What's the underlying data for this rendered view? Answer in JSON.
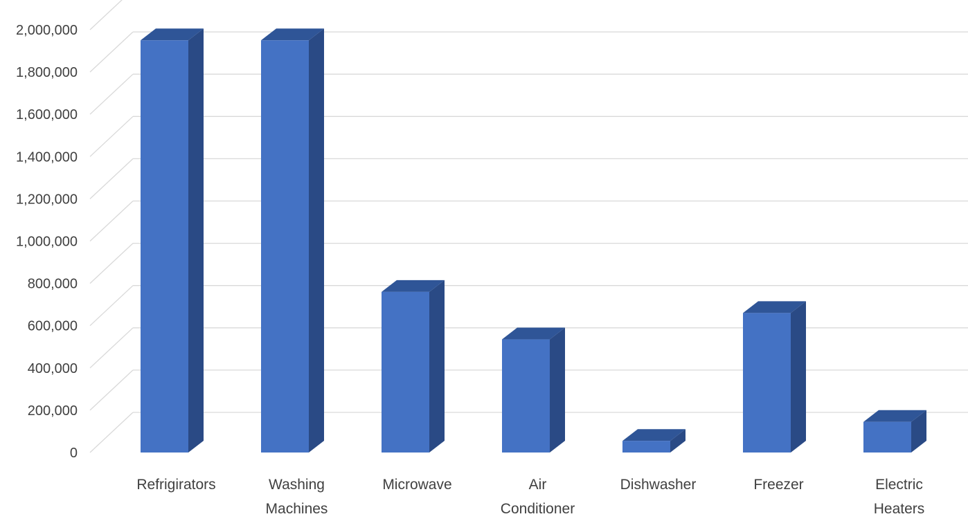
{
  "chart_data": {
    "type": "bar",
    "style": "3d-column",
    "categories": [
      [
        "Refrigirators"
      ],
      [
        "Washing",
        "Machines"
      ],
      [
        "Microwave"
      ],
      [
        "Air",
        "Conditioner"
      ],
      [
        "Dishwasher"
      ],
      [
        "Freezer"
      ],
      [
        "Electric",
        "Heaters"
      ]
    ],
    "values": [
      1950000,
      1950000,
      760000,
      535000,
      55000,
      660000,
      145000
    ],
    "y_ticks": [
      "0",
      "200,000",
      "400,000",
      "600,000",
      "800,000",
      "1,000,000",
      "1,200,000",
      "1,400,000",
      "1,600,000",
      "1,800,000",
      "2,000,000"
    ],
    "ylim": [
      0,
      2200000
    ],
    "title": "",
    "xlabel": "",
    "ylabel": "",
    "grid": true,
    "legend": "none",
    "colors": {
      "bar_front": "#4472C4",
      "bar_side": "#2A4A85",
      "bar_top": "#2F5597",
      "grid": "#D9D9D9",
      "text": "#404040"
    }
  }
}
